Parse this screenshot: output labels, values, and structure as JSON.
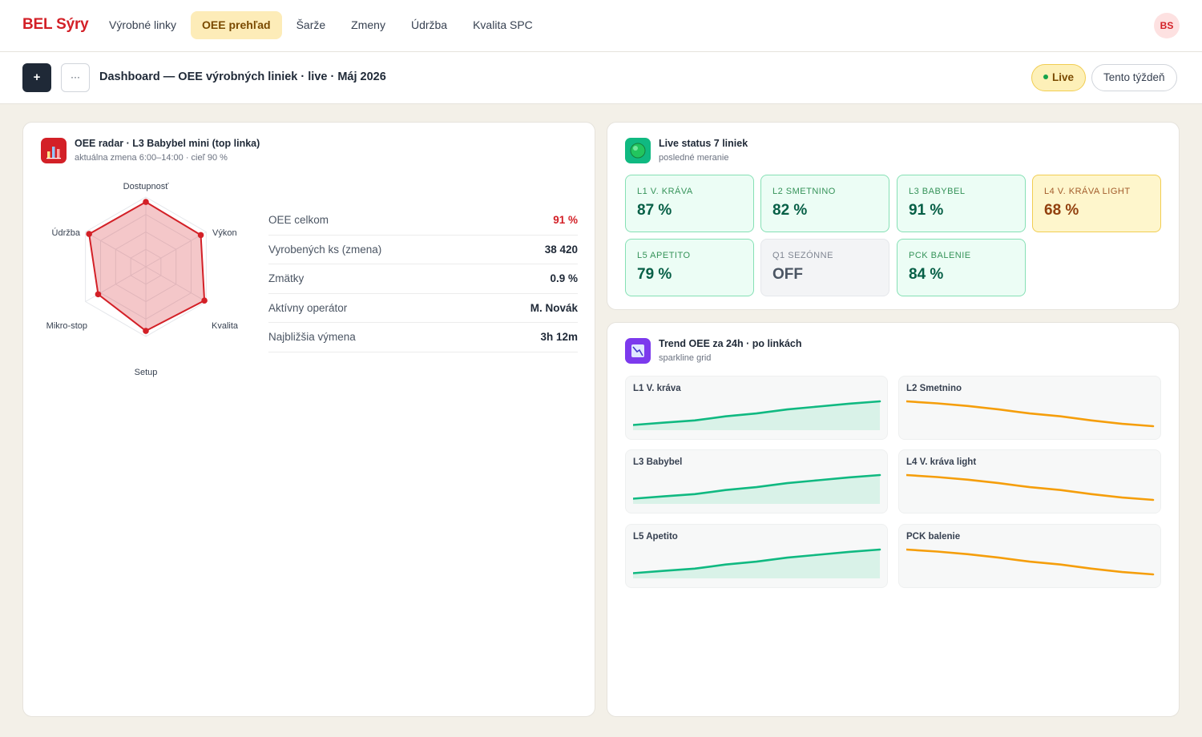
{
  "nav": {
    "brand": "BEL Sýry",
    "items": [
      "Výrobné linky",
      "OEE prehľad",
      "Šarže",
      "Zmeny",
      "Údržba",
      "Kvalita SPC"
    ],
    "active_index": 1,
    "avatar": "BS"
  },
  "toolbar": {
    "add_label": "+",
    "more_label": "···",
    "title": "Dashboard — OEE výrobných liniek · live · Máj 2026",
    "live_label": "Live",
    "period_label": "Tento týždeň"
  },
  "radar": {
    "icon": "bar-chart-icon",
    "title": "OEE radar · L3 Babybel mini (top linka)",
    "subtitle": "aktuálna zmena 6:00–14:00 · cieľ 90 %",
    "chart_data": {
      "type": "radar",
      "axes": [
        "Dostupnosť",
        "Výkon",
        "Kvalita",
        "Setup",
        "Mikro-stop",
        "Údržba"
      ],
      "values": [
        93,
        91,
        97,
        92,
        79,
        94
      ],
      "range": [
        0,
        100
      ],
      "rings": 4,
      "color": "#d32027"
    },
    "kpis": [
      {
        "label": "OEE celkom",
        "value": "91 %",
        "highlight": true
      },
      {
        "label": "Vyrobených ks (zmena)",
        "value": "38 420"
      },
      {
        "label": "Zmätky",
        "value": "0.9 %"
      },
      {
        "label": "Aktívny operátor",
        "value": "M. Novák"
      },
      {
        "label": "Najbližšia výmena",
        "value": "3h 12m"
      }
    ]
  },
  "status": {
    "icon": "green-circle-icon",
    "title": "Live status 7 liniek",
    "subtitle": "posledné meranie",
    "lines": [
      {
        "name": "L1 V. KRÁVA",
        "value": "87 %",
        "state": "ok"
      },
      {
        "name": "L2 SMETNINO",
        "value": "82 %",
        "state": "ok"
      },
      {
        "name": "L3 BABYBEL",
        "value": "91 %",
        "state": "ok"
      },
      {
        "name": "L4 V. KRÁVA LIGHT",
        "value": "68 %",
        "state": "warn"
      },
      {
        "name": "L5 APETITO",
        "value": "79 %",
        "state": "ok"
      },
      {
        "name": "Q1 SEZÓNNE",
        "value": "OFF",
        "state": "off"
      },
      {
        "name": "PCK BALENIE",
        "value": "84 %",
        "state": "ok"
      }
    ]
  },
  "trend": {
    "icon": "trend-chart-icon",
    "title": "Trend OEE za 24h · po linkách",
    "subtitle": "sparkline grid",
    "colors": {
      "up": "#10b981",
      "down": "#f59e0b",
      "fill": "#d9f2e8"
    },
    "chart_data": [
      {
        "type": "area",
        "name": "L1 V. kráva",
        "trend": "up",
        "values": [
          0.18,
          0.26,
          0.34,
          0.48,
          0.58,
          0.72,
          0.82,
          0.92,
          1.0
        ]
      },
      {
        "type": "line",
        "name": "L2 Smetnino",
        "trend": "down",
        "values": [
          1.0,
          0.93,
          0.84,
          0.72,
          0.58,
          0.48,
          0.34,
          0.22,
          0.14
        ]
      },
      {
        "type": "area",
        "name": "L3 Babybel",
        "trend": "up",
        "values": [
          0.18,
          0.26,
          0.34,
          0.48,
          0.58,
          0.72,
          0.82,
          0.92,
          1.0
        ]
      },
      {
        "type": "line",
        "name": "L4 V. kráva light",
        "trend": "down",
        "values": [
          1.0,
          0.93,
          0.84,
          0.72,
          0.58,
          0.48,
          0.34,
          0.22,
          0.14
        ]
      },
      {
        "type": "area",
        "name": "L5 Apetito",
        "trend": "up",
        "values": [
          0.18,
          0.26,
          0.34,
          0.48,
          0.58,
          0.72,
          0.82,
          0.92,
          1.0
        ]
      },
      {
        "type": "line",
        "name": "PCK balenie",
        "trend": "down",
        "values": [
          1.0,
          0.93,
          0.84,
          0.72,
          0.58,
          0.48,
          0.34,
          0.22,
          0.14
        ]
      }
    ]
  }
}
